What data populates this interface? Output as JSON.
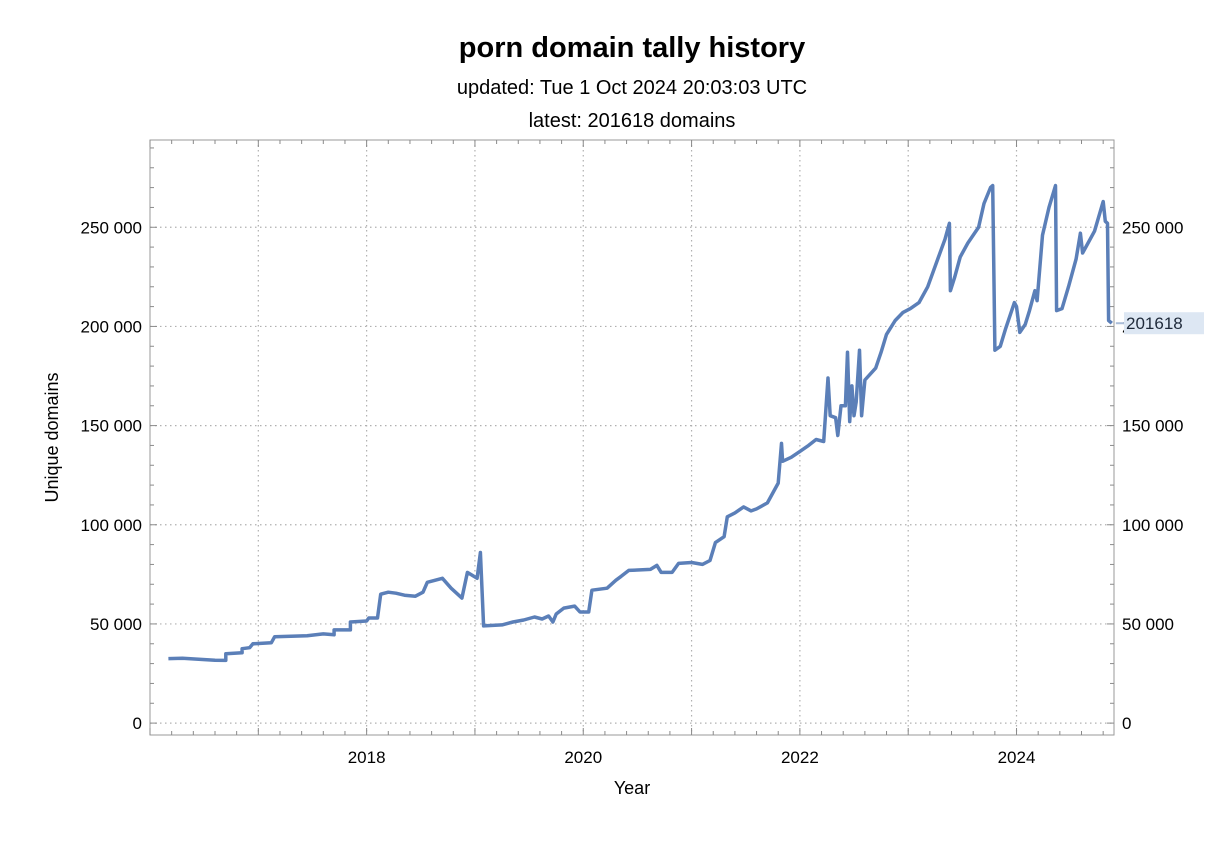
{
  "chart_data": {
    "type": "line",
    "title": "porn domain tally history",
    "subtitle_lines": [
      "updated: Tue 1 Oct 2024 20:03:03 UTC",
      "latest: 201618 domains"
    ],
    "xlabel": "Year",
    "ylabel": "Unique domains",
    "xlim": [
      2016.0,
      2024.9
    ],
    "ylim": [
      -6000,
      294000
    ],
    "x_ticks": [
      2018,
      2020,
      2022,
      2024
    ],
    "x_minor_ticks": [
      2017,
      2019,
      2021,
      2023
    ],
    "y_ticks": [
      0,
      50000,
      100000,
      150000,
      200000,
      250000
    ],
    "y_tick_labels": [
      "0",
      "50 000",
      "100 000",
      "150 000",
      "200 000",
      "250 000"
    ],
    "grid": true,
    "line_color": "#5b7fb8",
    "end_label": "201618",
    "series": [
      {
        "name": "",
        "points": [
          [
            2016.17,
            32500
          ],
          [
            2016.3,
            32700
          ],
          [
            2016.45,
            32200
          ],
          [
            2016.6,
            31700
          ],
          [
            2016.7,
            31600
          ],
          [
            2016.7,
            35000
          ],
          [
            2016.85,
            35500
          ],
          [
            2016.85,
            37500
          ],
          [
            2016.92,
            38000
          ],
          [
            2016.95,
            40000
          ],
          [
            2017.12,
            40500
          ],
          [
            2017.15,
            43500
          ],
          [
            2017.45,
            44000
          ],
          [
            2017.6,
            45000
          ],
          [
            2017.7,
            44500
          ],
          [
            2017.7,
            47000
          ],
          [
            2017.85,
            47000
          ],
          [
            2017.85,
            51000
          ],
          [
            2018.0,
            51500
          ],
          [
            2018.02,
            53000
          ],
          [
            2018.1,
            53000
          ],
          [
            2018.13,
            65000
          ],
          [
            2018.2,
            66000
          ],
          [
            2018.27,
            65500
          ],
          [
            2018.35,
            64500
          ],
          [
            2018.45,
            64000
          ],
          [
            2018.52,
            66000
          ],
          [
            2018.56,
            71000
          ],
          [
            2018.63,
            72000
          ],
          [
            2018.7,
            73000
          ],
          [
            2018.78,
            68000
          ],
          [
            2018.88,
            63000
          ],
          [
            2018.93,
            76000
          ],
          [
            2019.02,
            73000
          ],
          [
            2019.05,
            86000
          ],
          [
            2019.08,
            49000
          ],
          [
            2019.25,
            49500
          ],
          [
            2019.35,
            51000
          ],
          [
            2019.45,
            52000
          ],
          [
            2019.55,
            53500
          ],
          [
            2019.62,
            52500
          ],
          [
            2019.68,
            54000
          ],
          [
            2019.72,
            51000
          ],
          [
            2019.75,
            55000
          ],
          [
            2019.82,
            58000
          ],
          [
            2019.92,
            59000
          ],
          [
            2019.97,
            56000
          ],
          [
            2020.05,
            56000
          ],
          [
            2020.08,
            67000
          ],
          [
            2020.15,
            67500
          ],
          [
            2020.22,
            68000
          ],
          [
            2020.3,
            72000
          ],
          [
            2020.35,
            74000
          ],
          [
            2020.42,
            77000
          ],
          [
            2020.62,
            77500
          ],
          [
            2020.68,
            79500
          ],
          [
            2020.72,
            76000
          ],
          [
            2020.82,
            76000
          ],
          [
            2020.88,
            80500
          ],
          [
            2021.0,
            81000
          ],
          [
            2021.1,
            80000
          ],
          [
            2021.17,
            82000
          ],
          [
            2021.22,
            91000
          ],
          [
            2021.3,
            94000
          ],
          [
            2021.33,
            104000
          ],
          [
            2021.4,
            106000
          ],
          [
            2021.48,
            109000
          ],
          [
            2021.55,
            107000
          ],
          [
            2021.6,
            108000
          ],
          [
            2021.7,
            111000
          ],
          [
            2021.75,
            116000
          ],
          [
            2021.8,
            121000
          ],
          [
            2021.83,
            141000
          ],
          [
            2021.84,
            132000
          ],
          [
            2021.92,
            134000
          ],
          [
            2022.0,
            137000
          ],
          [
            2022.08,
            140000
          ],
          [
            2022.15,
            143000
          ],
          [
            2022.22,
            142000
          ],
          [
            2022.26,
            174000
          ],
          [
            2022.28,
            155000
          ],
          [
            2022.33,
            154000
          ],
          [
            2022.35,
            145000
          ],
          [
            2022.38,
            160000
          ],
          [
            2022.42,
            160000
          ],
          [
            2022.44,
            187000
          ],
          [
            2022.46,
            152000
          ],
          [
            2022.48,
            170000
          ],
          [
            2022.5,
            155000
          ],
          [
            2022.52,
            162000
          ],
          [
            2022.55,
            188000
          ],
          [
            2022.57,
            155000
          ],
          [
            2022.6,
            173000
          ],
          [
            2022.7,
            179000
          ],
          [
            2022.75,
            187000
          ],
          [
            2022.8,
            196000
          ],
          [
            2022.88,
            203000
          ],
          [
            2022.95,
            207000
          ],
          [
            2023.02,
            209000
          ],
          [
            2023.1,
            212000
          ],
          [
            2023.18,
            220000
          ],
          [
            2023.28,
            235000
          ],
          [
            2023.34,
            244000
          ],
          [
            2023.38,
            252000
          ],
          [
            2023.39,
            218000
          ],
          [
            2023.43,
            225000
          ],
          [
            2023.48,
            235000
          ],
          [
            2023.55,
            242000
          ],
          [
            2023.65,
            250000
          ],
          [
            2023.7,
            262000
          ],
          [
            2023.76,
            270000
          ],
          [
            2023.78,
            271000
          ],
          [
            2023.8,
            188000
          ],
          [
            2023.85,
            190000
          ],
          [
            2023.9,
            199000
          ],
          [
            2023.98,
            212000
          ],
          [
            2024.0,
            210000
          ],
          [
            2024.03,
            197000
          ],
          [
            2024.08,
            201000
          ],
          [
            2024.12,
            208000
          ],
          [
            2024.17,
            218000
          ],
          [
            2024.19,
            213000
          ],
          [
            2024.24,
            246000
          ],
          [
            2024.3,
            260000
          ],
          [
            2024.36,
            271000
          ],
          [
            2024.37,
            208000
          ],
          [
            2024.42,
            209000
          ],
          [
            2024.48,
            220000
          ],
          [
            2024.55,
            234000
          ],
          [
            2024.59,
            247000
          ],
          [
            2024.61,
            237000
          ],
          [
            2024.66,
            242000
          ],
          [
            2024.72,
            248000
          ],
          [
            2024.8,
            263000
          ],
          [
            2024.82,
            253000
          ],
          [
            2024.84,
            252000
          ],
          [
            2024.85,
            203000
          ],
          [
            2024.88,
            201618
          ]
        ]
      }
    ]
  }
}
